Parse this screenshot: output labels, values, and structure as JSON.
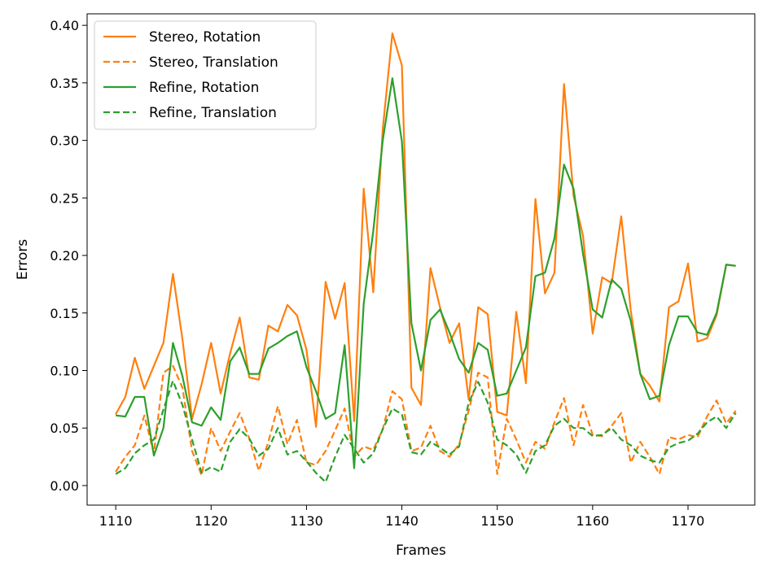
{
  "chart_data": {
    "type": "line",
    "title": "",
    "xlabel": "Frames",
    "ylabel": "Errors",
    "xlim": [
      1107,
      1177
    ],
    "ylim": [
      -0.017,
      0.41
    ],
    "xticks": [
      1110,
      1120,
      1130,
      1140,
      1150,
      1160,
      1170
    ],
    "yticks": [
      0.0,
      0.05,
      0.1,
      0.15,
      0.2,
      0.25,
      0.3,
      0.35,
      0.4
    ],
    "grid": false,
    "legend_position": "top-left",
    "x": [
      1110,
      1111,
      1112,
      1113,
      1114,
      1115,
      1116,
      1117,
      1118,
      1119,
      1120,
      1121,
      1122,
      1123,
      1124,
      1125,
      1126,
      1127,
      1128,
      1129,
      1130,
      1131,
      1132,
      1133,
      1134,
      1135,
      1136,
      1137,
      1138,
      1139,
      1140,
      1141,
      1142,
      1143,
      1144,
      1145,
      1146,
      1147,
      1148,
      1149,
      1150,
      1151,
      1152,
      1153,
      1154,
      1155,
      1156,
      1157,
      1158,
      1159,
      1160,
      1161,
      1162,
      1163,
      1164,
      1165,
      1166,
      1167,
      1168,
      1169,
      1170,
      1171,
      1172,
      1173,
      1174,
      1175
    ],
    "series": [
      {
        "name": "Stereo, Rotation",
        "color": "#ff7f0e",
        "dash": "solid",
        "values": [
          0.062,
          0.077,
          0.111,
          0.084,
          0.104,
          0.124,
          0.184,
          0.127,
          0.058,
          0.088,
          0.124,
          0.08,
          0.115,
          0.146,
          0.094,
          0.092,
          0.139,
          0.134,
          0.157,
          0.148,
          0.118,
          0.051,
          0.177,
          0.145,
          0.176,
          0.056,
          0.258,
          0.168,
          0.31,
          0.393,
          0.365,
          0.085,
          0.07,
          0.189,
          0.155,
          0.124,
          0.141,
          0.075,
          0.155,
          0.149,
          0.064,
          0.061,
          0.151,
          0.089,
          0.249,
          0.167,
          0.185,
          0.349,
          0.252,
          0.217,
          0.132,
          0.181,
          0.176,
          0.234,
          0.152,
          0.097,
          0.087,
          0.073,
          0.155,
          0.16,
          0.193,
          0.125,
          0.128,
          0.148,
          0.192,
          0.191
        ]
      },
      {
        "name": "Stereo, Translation",
        "color": "#ff7f0e",
        "dash": "dashed",
        "values": [
          0.012,
          0.025,
          0.035,
          0.061,
          0.028,
          0.098,
          0.104,
          0.085,
          0.03,
          0.009,
          0.05,
          0.03,
          0.047,
          0.063,
          0.041,
          0.013,
          0.038,
          0.069,
          0.036,
          0.057,
          0.02,
          0.018,
          0.03,
          0.048,
          0.067,
          0.025,
          0.034,
          0.031,
          0.049,
          0.082,
          0.075,
          0.03,
          0.033,
          0.052,
          0.03,
          0.025,
          0.036,
          0.065,
          0.098,
          0.094,
          0.01,
          0.058,
          0.04,
          0.02,
          0.038,
          0.032,
          0.055,
          0.076,
          0.035,
          0.07,
          0.044,
          0.043,
          0.052,
          0.063,
          0.02,
          0.038,
          0.025,
          0.01,
          0.042,
          0.04,
          0.044,
          0.042,
          0.06,
          0.074,
          0.054,
          0.065
        ]
      },
      {
        "name": "Refine, Rotation",
        "color": "#2ca02c",
        "dash": "solid",
        "values": [
          0.061,
          0.06,
          0.077,
          0.077,
          0.026,
          0.05,
          0.124,
          0.095,
          0.055,
          0.052,
          0.068,
          0.057,
          0.108,
          0.12,
          0.097,
          0.097,
          0.119,
          0.124,
          0.13,
          0.134,
          0.103,
          0.082,
          0.058,
          0.063,
          0.122,
          0.015,
          0.158,
          0.221,
          0.3,
          0.354,
          0.299,
          0.141,
          0.1,
          0.144,
          0.153,
          0.133,
          0.11,
          0.098,
          0.124,
          0.118,
          0.078,
          0.08,
          0.1,
          0.12,
          0.182,
          0.185,
          0.215,
          0.279,
          0.258,
          0.201,
          0.153,
          0.146,
          0.179,
          0.171,
          0.143,
          0.097,
          0.075,
          0.078,
          0.122,
          0.147,
          0.147,
          0.133,
          0.131,
          0.15,
          0.192,
          0.191
        ]
      },
      {
        "name": "Refine, Translation",
        "color": "#2ca02c",
        "dash": "dashed",
        "values": [
          0.01,
          0.015,
          0.028,
          0.035,
          0.04,
          0.066,
          0.091,
          0.07,
          0.04,
          0.011,
          0.016,
          0.012,
          0.038,
          0.049,
          0.041,
          0.026,
          0.032,
          0.05,
          0.027,
          0.03,
          0.021,
          0.011,
          0.003,
          0.025,
          0.044,
          0.032,
          0.02,
          0.028,
          0.049,
          0.067,
          0.062,
          0.029,
          0.027,
          0.038,
          0.033,
          0.027,
          0.034,
          0.072,
          0.09,
          0.072,
          0.04,
          0.035,
          0.027,
          0.011,
          0.03,
          0.035,
          0.052,
          0.058,
          0.05,
          0.05,
          0.043,
          0.044,
          0.05,
          0.04,
          0.035,
          0.026,
          0.022,
          0.02,
          0.033,
          0.037,
          0.039,
          0.045,
          0.055,
          0.06,
          0.05,
          0.063
        ]
      }
    ]
  }
}
